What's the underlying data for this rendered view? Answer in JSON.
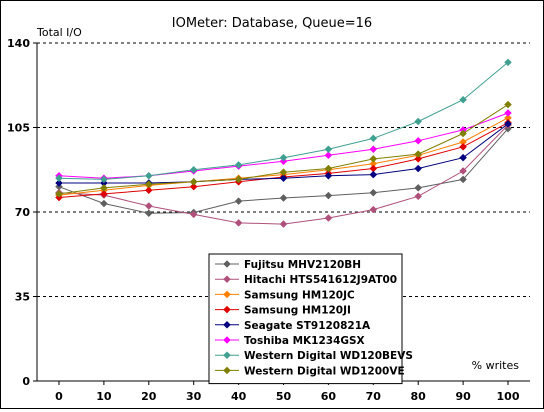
{
  "chart_data": {
    "type": "line",
    "title": "IOMeter: Database, Queue=16",
    "ylabel": "Total I/O",
    "xlabel": "% writes",
    "x": [
      0,
      10,
      20,
      30,
      40,
      50,
      60,
      70,
      80,
      90,
      100
    ],
    "xticks": [
      "0",
      "10",
      "20",
      "30",
      "40",
      "50",
      "60",
      "70",
      "80",
      "90",
      "100"
    ],
    "ylim": [
      0,
      140
    ],
    "yticks": [
      "0",
      "35",
      "70",
      "105",
      "140"
    ],
    "grid": "dashed horizontal",
    "legend_position": "bottom-center",
    "series": [
      {
        "name": "Fujitsu MHV2120BH",
        "color": "#5f5f5f",
        "marker": "diamond",
        "values": [
          80.5,
          73.5,
          69.5,
          69.8,
          74.5,
          75.8,
          76.8,
          78.0,
          80.0,
          83.5,
          104.5
        ]
      },
      {
        "name": "Hitachi HTS541612J9AT00",
        "color": "#b0507a",
        "marker": "diamond",
        "values": [
          78.0,
          77.0,
          72.5,
          69.0,
          65.5,
          65.0,
          67.5,
          71.0,
          76.5,
          87.0,
          106.0
        ]
      },
      {
        "name": "Samsung HM120JC",
        "color": "#ff7f00",
        "marker": "diamond",
        "values": [
          77.0,
          79.0,
          81.0,
          82.5,
          84.0,
          85.5,
          87.5,
          90.0,
          93.5,
          99.0,
          109.0
        ]
      },
      {
        "name": "Samsung HM120JI",
        "color": "#e00000",
        "marker": "diamond",
        "values": [
          76.0,
          77.5,
          79.0,
          80.5,
          82.5,
          84.5,
          86.0,
          88.0,
          92.0,
          97.0,
          107.0
        ]
      },
      {
        "name": "Seagate ST9120821A",
        "color": "#000080",
        "marker": "diamond",
        "values": [
          82.0,
          82.0,
          82.0,
          82.5,
          83.5,
          84.0,
          85.0,
          85.5,
          88.0,
          92.5,
          106.5
        ]
      },
      {
        "name": "Toshiba MK1234GSX",
        "color": "#ff00ff",
        "marker": "diamond",
        "values": [
          85.0,
          84.0,
          85.0,
          87.0,
          89.0,
          91.0,
          93.5,
          96.0,
          99.5,
          104.0,
          111.0
        ]
      },
      {
        "name": "Western Digital WD120BEVS",
        "color": "#40a090",
        "marker": "diamond",
        "values": [
          84.0,
          83.5,
          85.0,
          87.5,
          89.5,
          92.5,
          96.0,
          100.5,
          107.5,
          116.5,
          132.0
        ]
      },
      {
        "name": "Western Digital WD1200VE",
        "color": "#808000",
        "marker": "diamond",
        "values": [
          77.5,
          80.0,
          81.5,
          82.5,
          83.5,
          86.5,
          88.0,
          92.0,
          94.0,
          102.5,
          114.5
        ]
      }
    ]
  }
}
